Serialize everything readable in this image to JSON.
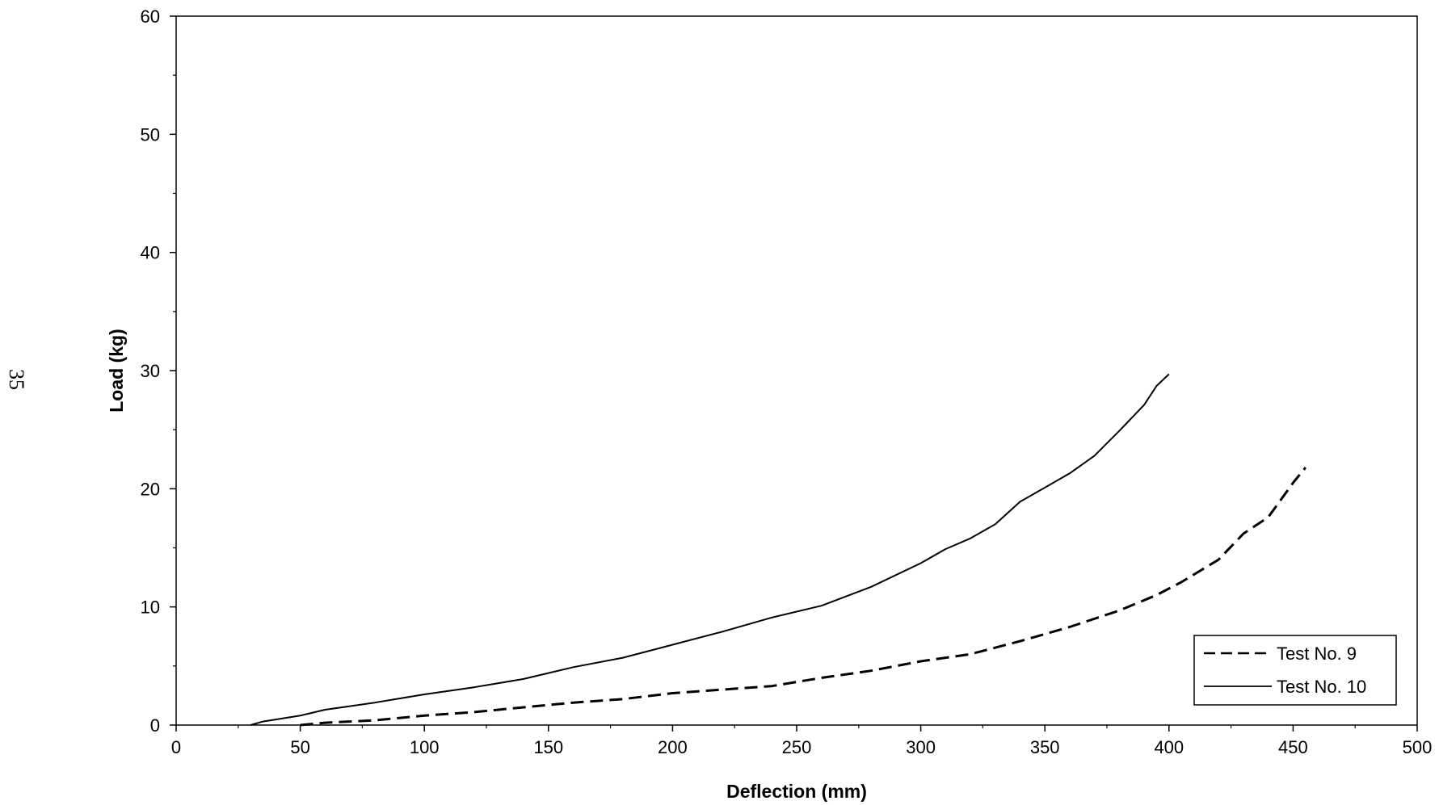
{
  "page_number": "35",
  "chart_data": {
    "type": "line",
    "title": "",
    "xlabel": "Deflection (mm)",
    "ylabel": "Load (kg)",
    "xlim": [
      0,
      500
    ],
    "ylim": [
      0,
      60
    ],
    "x_ticks": [
      0,
      50,
      100,
      150,
      200,
      250,
      300,
      350,
      400,
      450,
      500
    ],
    "y_ticks": [
      0,
      10,
      20,
      30,
      40,
      50,
      60
    ],
    "grid": false,
    "legend_position": "bottom-right",
    "series": [
      {
        "name": "Test No. 9",
        "style": "dashed",
        "color": "#000000",
        "points": [
          [
            50,
            0
          ],
          [
            60,
            0.2
          ],
          [
            80,
            0.4
          ],
          [
            100,
            0.8
          ],
          [
            120,
            1.1
          ],
          [
            140,
            1.5
          ],
          [
            160,
            1.9
          ],
          [
            180,
            2.2
          ],
          [
            200,
            2.7
          ],
          [
            220,
            3.0
          ],
          [
            240,
            3.3
          ],
          [
            260,
            4.0
          ],
          [
            280,
            4.6
          ],
          [
            300,
            5.4
          ],
          [
            320,
            6.0
          ],
          [
            340,
            7.1
          ],
          [
            360,
            8.3
          ],
          [
            380,
            9.7
          ],
          [
            395,
            11.0
          ],
          [
            405,
            12.1
          ],
          [
            420,
            14.0
          ],
          [
            430,
            16.2
          ],
          [
            440,
            17.6
          ],
          [
            450,
            20.5
          ],
          [
            455,
            21.8
          ]
        ]
      },
      {
        "name": "Test No. 10",
        "style": "solid",
        "color": "#000000",
        "points": [
          [
            30,
            0
          ],
          [
            35,
            0.3
          ],
          [
            50,
            0.8
          ],
          [
            60,
            1.3
          ],
          [
            80,
            1.9
          ],
          [
            100,
            2.6
          ],
          [
            120,
            3.2
          ],
          [
            140,
            3.9
          ],
          [
            160,
            4.9
          ],
          [
            180,
            5.7
          ],
          [
            200,
            6.8
          ],
          [
            220,
            7.9
          ],
          [
            240,
            9.1
          ],
          [
            260,
            10.1
          ],
          [
            280,
            11.7
          ],
          [
            300,
            13.7
          ],
          [
            310,
            14.9
          ],
          [
            320,
            15.8
          ],
          [
            330,
            17.0
          ],
          [
            340,
            18.9
          ],
          [
            350,
            20.1
          ],
          [
            360,
            21.3
          ],
          [
            370,
            22.8
          ],
          [
            380,
            24.9
          ],
          [
            390,
            27.1
          ],
          [
            395,
            28.7
          ],
          [
            400,
            29.7
          ]
        ]
      }
    ]
  }
}
